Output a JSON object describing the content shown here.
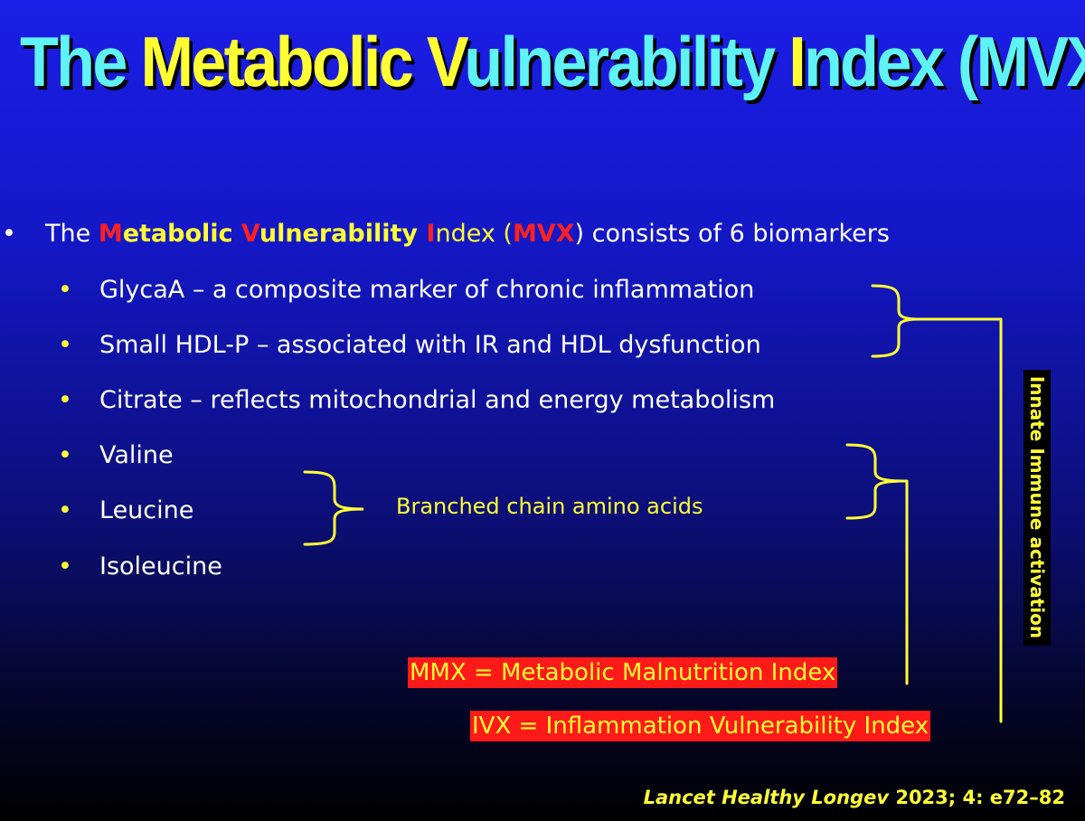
{
  "title": {
    "p1": "The ",
    "p2": "Metabolic ",
    "p3": "V",
    "p4": "ulnerability ",
    "p5": "I",
    "p6": "ndex (MVX)"
  },
  "main_bullet": {
    "pre": "The ",
    "m": "M",
    "etabolic": "etabolic ",
    "v": "V",
    "ulnerability": "ulnerability ",
    "i": "I",
    "ndex": "ndex (",
    "mvx": "MVX",
    "post": ") consists of 6 biomarkers"
  },
  "bullet_glyph": "•",
  "biomarkers": [
    "GlycaA – a composite marker of chronic inflammation",
    "Small HDL-P – associated with IR and HDL dysfunction",
    "Citrate – reflects mitochondrial and energy metabolism",
    "Valine",
    "Leucine",
    "Isoleucine"
  ],
  "bcaa_label": "Branched chain amino acids",
  "innate_label": "Innate Immune activation",
  "mmx_label": "MMX = Metabolic Malnutrition Index",
  "ivx_label": "IVX = Inflammation Vulnerability Index",
  "citation": {
    "journal": "Lancet Healthy Longev",
    "rest": " 2023; 4: e72–82"
  },
  "colors": {
    "background_top": "#1b1ee6",
    "background_bottom": "#000000",
    "title": "#5ff2f6",
    "accent_yellow": "#ffff33",
    "accent_red": "#ff1a1a"
  }
}
